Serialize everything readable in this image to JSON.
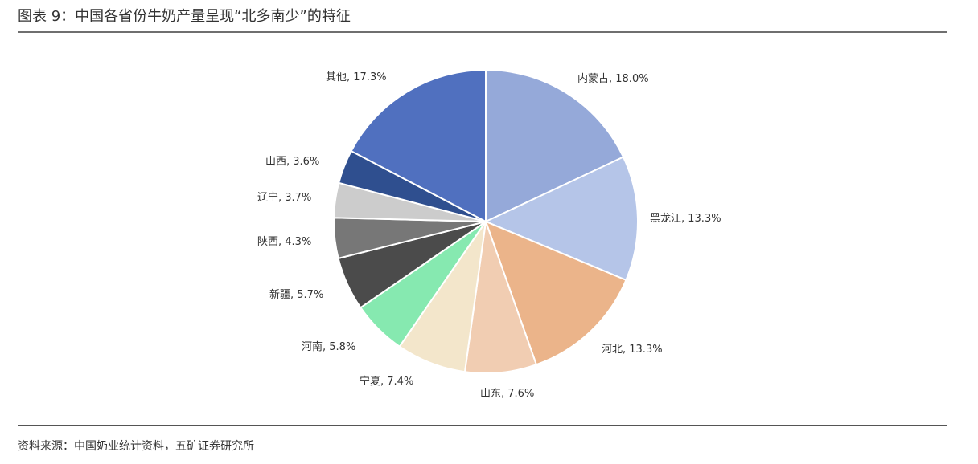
{
  "header": {
    "title": "图表 9：中国各省份牛奶产量呈现“北多南少”的特征"
  },
  "footer": {
    "source": "资料来源：中国奶业统计资料，五矿证券研究所"
  },
  "chart_data": {
    "type": "pie",
    "title": "",
    "unit": "%",
    "slices": [
      {
        "name": "内蒙古",
        "value": 18.0,
        "label": "内蒙古, 18.0%",
        "color": "#95a9d9"
      },
      {
        "name": "黑龙江",
        "value": 13.3,
        "label": "黑龙江, 13.3%",
        "color": "#b5c5e8"
      },
      {
        "name": "河北",
        "value": 13.3,
        "label": "河北, 13.3%",
        "color": "#ebb48a"
      },
      {
        "name": "山东",
        "value": 7.6,
        "label": "山东, 7.6%",
        "color": "#f1cdb2"
      },
      {
        "name": "宁夏",
        "value": 7.4,
        "label": "宁夏, 7.4%",
        "color": "#f3e6cb"
      },
      {
        "name": "河南",
        "value": 5.8,
        "label": "河南, 5.8%",
        "color": "#86e9b0"
      },
      {
        "name": "新疆",
        "value": 5.7,
        "label": "新疆, 5.7%",
        "color": "#4b4b4b"
      },
      {
        "name": "陕西",
        "value": 4.3,
        "label": "陕西, 4.3%",
        "color": "#777777"
      },
      {
        "name": "辽宁",
        "value": 3.7,
        "label": "辽宁, 3.7%",
        "color": "#cccccc"
      },
      {
        "name": "山西",
        "value": 3.6,
        "label": "山西, 3.6%",
        "color": "#2f4f8f"
      },
      {
        "name": "其他",
        "value": 17.3,
        "label": "其他, 17.3%",
        "color": "#5070bf"
      }
    ]
  }
}
